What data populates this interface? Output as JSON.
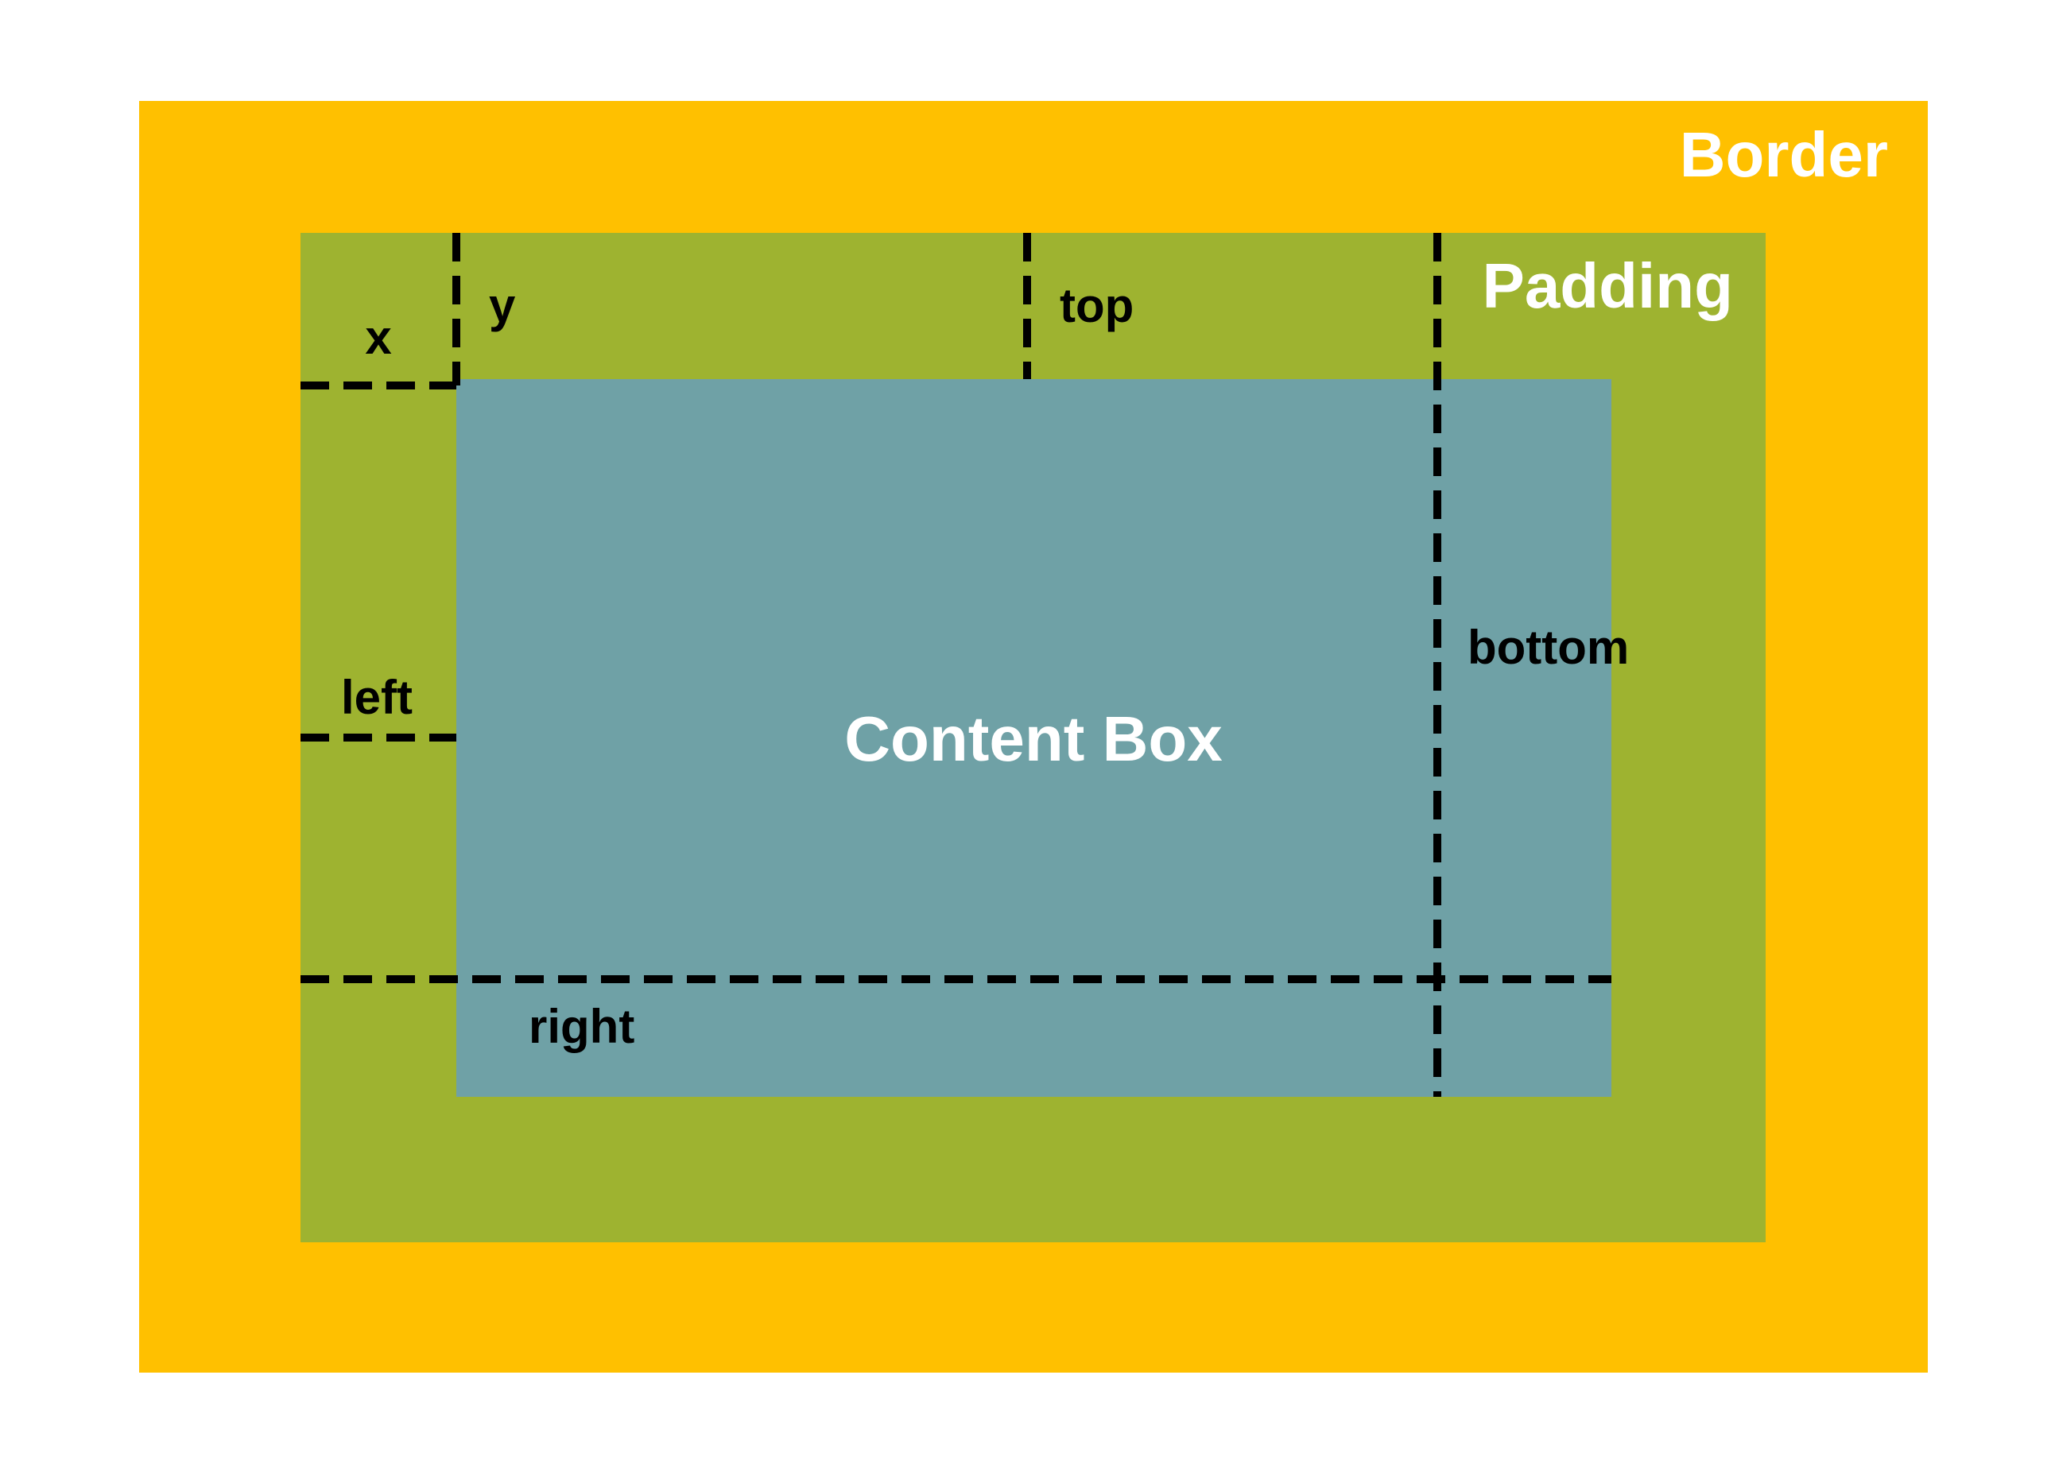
{
  "labels": {
    "border": "Border",
    "padding": "Padding",
    "content": "Content Box",
    "x": "x",
    "y": "y",
    "top": "top",
    "left": "left",
    "right": "right",
    "bottom": "bottom"
  },
  "colors": {
    "background": "#ffffff",
    "border": "#FFC000",
    "padding": "#9EB330",
    "content": "#6FA1A6",
    "lines": "#000000",
    "title_text": "#ffffff",
    "label_text": "#000000"
  }
}
